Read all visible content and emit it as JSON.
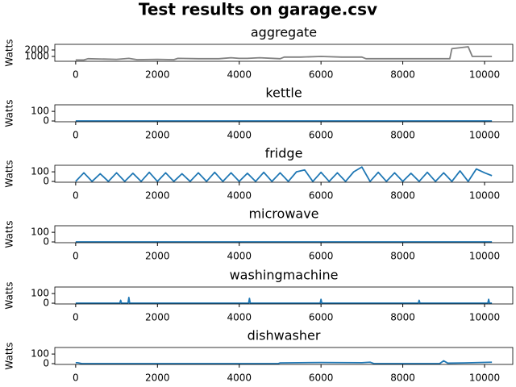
{
  "title": "Test results on garage.csv",
  "chart_data": [
    {
      "type": "line",
      "title": "aggregate",
      "ylabel": "Watts",
      "x": [
        0,
        200,
        300,
        1000,
        1300,
        1500,
        2000,
        2400,
        2500,
        3000,
        3500,
        3800,
        4000,
        4200,
        4500,
        5000,
        5100,
        5500,
        6000,
        6500,
        7000,
        7100,
        7500,
        8000,
        8500,
        9000,
        9150,
        9200,
        9600,
        9700,
        10180
      ],
      "series": [
        {
          "color": "#808080",
          "values": [
            450,
            450,
            650,
            550,
            700,
            500,
            550,
            500,
            700,
            650,
            650,
            800,
            700,
            700,
            800,
            650,
            900,
            900,
            1000,
            900,
            900,
            650,
            650,
            650,
            650,
            650,
            650,
            2200,
            2500,
            1000,
            1000
          ]
        }
      ],
      "xlim": [
        -510,
        10690
      ],
      "ylim": [
        250,
        2875
      ],
      "xticks": [
        0,
        2000,
        4000,
        6000,
        8000,
        10000
      ],
      "yticks": [
        1000,
        2000
      ]
    },
    {
      "type": "line",
      "title": "kettle",
      "ylabel": "Watts",
      "x": [
        0,
        10180
      ],
      "series": [
        {
          "color": "#1f77b4",
          "values": [
            0,
            0
          ]
        }
      ],
      "xlim": [
        -510,
        10690
      ],
      "ylim": [
        -8,
        168
      ],
      "xticks": [
        0,
        2000,
        4000,
        6000,
        8000,
        10000
      ],
      "yticks": [
        0,
        100
      ]
    },
    {
      "type": "line",
      "title": "fridge",
      "ylabel": "Watts",
      "x": [
        0,
        200,
        400,
        600,
        800,
        1000,
        1200,
        1400,
        1600,
        1800,
        2000,
        2200,
        2400,
        2600,
        2800,
        3000,
        3200,
        3400,
        3600,
        3800,
        4000,
        4200,
        4400,
        4600,
        4800,
        5000,
        5200,
        5400,
        5600,
        5800,
        6000,
        6200,
        6400,
        6600,
        6800,
        7000,
        7200,
        7400,
        7600,
        7800,
        8000,
        8200,
        8400,
        8600,
        8800,
        9000,
        9200,
        9400,
        9600,
        9800,
        10000,
        10180
      ],
      "series": [
        {
          "color": "#1f77b4",
          "values": [
            0,
            90,
            0,
            80,
            0,
            90,
            0,
            85,
            0,
            95,
            0,
            90,
            0,
            80,
            0,
            90,
            0,
            95,
            0,
            90,
            0,
            85,
            0,
            95,
            0,
            90,
            0,
            100,
            120,
            0,
            95,
            0,
            90,
            0,
            100,
            150,
            0,
            95,
            0,
            90,
            0,
            85,
            0,
            95,
            0,
            90,
            0,
            110,
            0,
            130,
            90,
            60
          ]
        }
      ],
      "xlim": [
        -510,
        10690
      ],
      "ylim": [
        -8,
        168
      ],
      "xticks": [
        0,
        2000,
        4000,
        6000,
        8000,
        10000
      ],
      "yticks": [
        0,
        100
      ]
    },
    {
      "type": "line",
      "title": "microwave",
      "ylabel": "Watts",
      "x": [
        0,
        10180
      ],
      "series": [
        {
          "color": "#1f77b4",
          "values": [
            0,
            0
          ]
        }
      ],
      "xlim": [
        -510,
        10690
      ],
      "ylim": [
        -8,
        168
      ],
      "xticks": [
        0,
        2000,
        4000,
        6000,
        8000,
        10000
      ],
      "yticks": [
        0,
        100
      ]
    },
    {
      "type": "line",
      "title": "washingmachine",
      "ylabel": "Watts",
      "x": [
        0,
        1080,
        1100,
        1120,
        1280,
        1300,
        1320,
        4230,
        4250,
        4270,
        5980,
        6000,
        6020,
        8380,
        8400,
        8420,
        10080,
        10100,
        10120,
        10180
      ],
      "series": [
        {
          "color": "#1f77b4",
          "values": [
            0,
            0,
            30,
            0,
            0,
            60,
            0,
            0,
            50,
            0,
            0,
            40,
            0,
            0,
            30,
            0,
            0,
            40,
            0,
            0
          ]
        }
      ],
      "xlim": [
        -510,
        10690
      ],
      "ylim": [
        -8,
        168
      ],
      "xticks": [
        0,
        2000,
        4000,
        6000,
        8000,
        10000
      ],
      "yticks": [
        0,
        100
      ]
    },
    {
      "type": "line",
      "title": "dishwasher",
      "ylabel": "Watts",
      "x": [
        0,
        50,
        150,
        4950,
        5000,
        6000,
        7000,
        7200,
        7300,
        8900,
        9000,
        9100,
        9500,
        10180
      ],
      "series": [
        {
          "color": "#1f77b4",
          "values": [
            10,
            10,
            0,
            0,
            8,
            12,
            10,
            15,
            0,
            0,
            30,
            5,
            8,
            15
          ]
        }
      ],
      "xlim": [
        -510,
        10690
      ],
      "ylim": [
        -8,
        168
      ],
      "xticks": [
        0,
        2000,
        4000,
        6000,
        8000,
        10000
      ],
      "yticks": [
        0,
        100
      ]
    }
  ]
}
